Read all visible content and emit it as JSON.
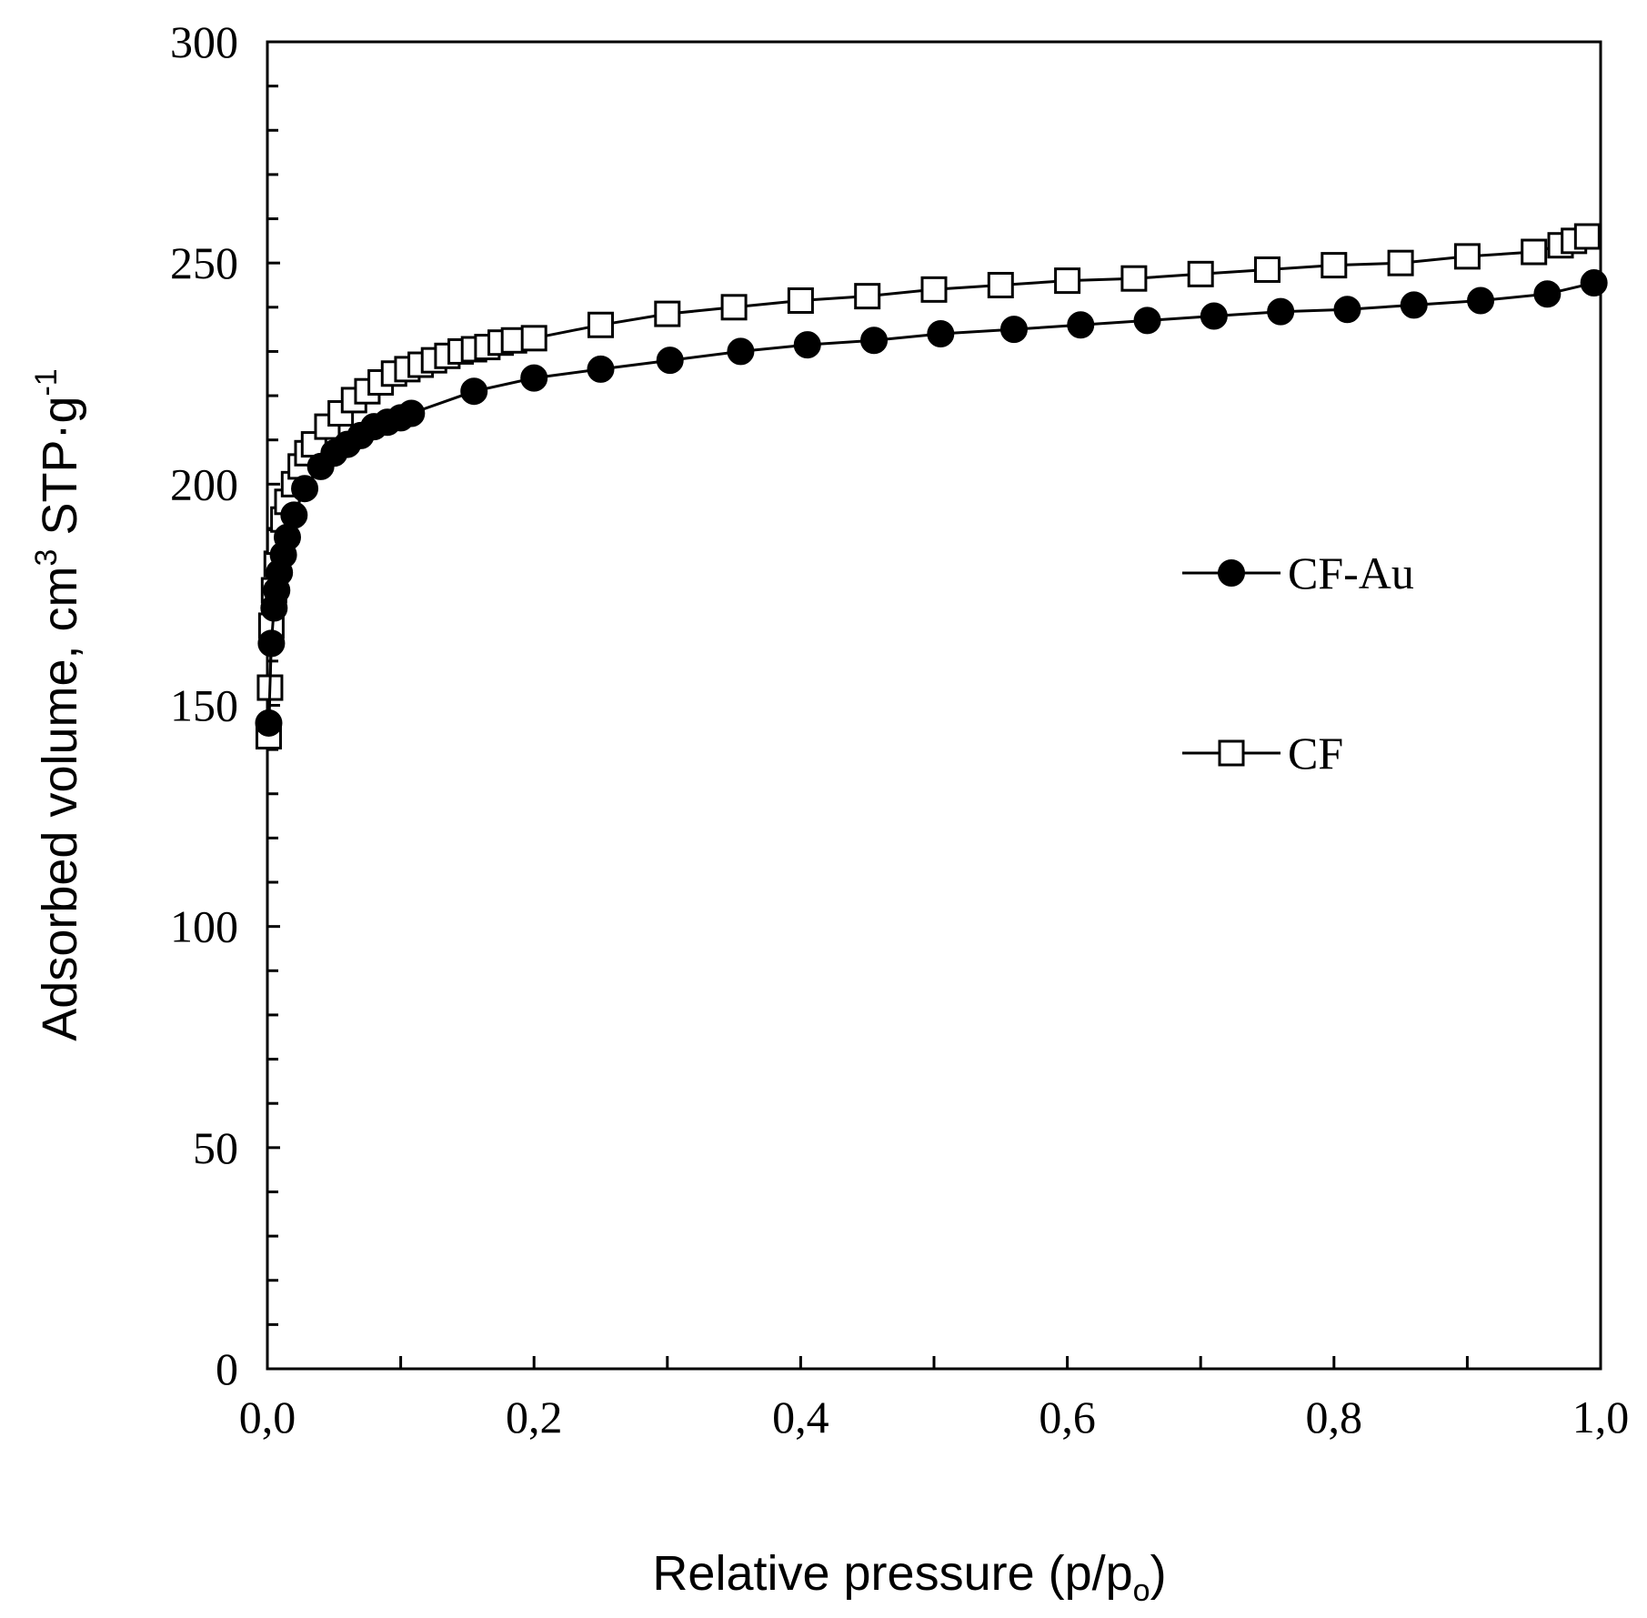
{
  "chart_data": {
    "type": "line",
    "title": "",
    "xlabel_main": "Relative pressure (p/p",
    "xlabel_sub": "o",
    "xlabel_end": ")",
    "ylabel_main": "Adsorbed volume, cm",
    "ylabel_sup1": "3",
    "ylabel_mid": " STP·g",
    "ylabel_sup2": "-1",
    "xlim": [
      0,
      1
    ],
    "ylim": [
      0,
      300
    ],
    "x_ticks": [
      0,
      0.2,
      0.4,
      0.6,
      0.8,
      1.0
    ],
    "x_tick_labels": [
      "0,0",
      "0,2",
      "0,4",
      "0,6",
      "0,8",
      "1,0"
    ],
    "y_ticks": [
      0,
      50,
      100,
      150,
      200,
      250,
      300
    ],
    "y_tick_labels": [
      "0",
      "50",
      "100",
      "150",
      "200",
      "250",
      "300"
    ],
    "y_minor_step": 10,
    "x_minor_step": 0.1,
    "grid": false,
    "legend_position": "right-middle",
    "series": [
      {
        "name": "CF-Au",
        "marker": "filled-circle",
        "x": [
          0.001,
          0.003,
          0.005,
          0.007,
          0.009,
          0.012,
          0.015,
          0.02,
          0.028,
          0.04,
          0.05,
          0.06,
          0.07,
          0.08,
          0.09,
          0.1,
          0.108,
          0.155,
          0.2,
          0.25,
          0.302,
          0.355,
          0.405,
          0.455,
          0.505,
          0.56,
          0.61,
          0.66,
          0.71,
          0.76,
          0.81,
          0.86,
          0.91,
          0.96,
          0.995
        ],
        "values": [
          146,
          164,
          172,
          176,
          180,
          184,
          188,
          193,
          199,
          204,
          207,
          209,
          211,
          213,
          214,
          215,
          216,
          221,
          224,
          226,
          228,
          230,
          231.5,
          232.5,
          234,
          235,
          236,
          237,
          238,
          239,
          239.5,
          240.5,
          241.5,
          243,
          245.5
        ]
      },
      {
        "name": "CF",
        "marker": "open-square",
        "x": [
          0.001,
          0.002,
          0.003,
          0.005,
          0.007,
          0.009,
          0.012,
          0.015,
          0.02,
          0.025,
          0.03,
          0.035,
          0.045,
          0.055,
          0.065,
          0.075,
          0.085,
          0.095,
          0.105,
          0.115,
          0.125,
          0.135,
          0.145,
          0.155,
          0.165,
          0.175,
          0.185,
          0.2,
          0.25,
          0.3,
          0.35,
          0.4,
          0.45,
          0.5,
          0.55,
          0.6,
          0.65,
          0.7,
          0.75,
          0.8,
          0.85,
          0.9,
          0.95,
          0.97,
          0.98,
          0.99
        ],
        "values": [
          143,
          154,
          168,
          176,
          182,
          187,
          192,
          196,
          200,
          204,
          207,
          209,
          213,
          216,
          219,
          221,
          223,
          225,
          226,
          227,
          228,
          229,
          230,
          230.5,
          231,
          232,
          232.5,
          233,
          236,
          238.5,
          240,
          241.5,
          242.5,
          244,
          245,
          246,
          246.5,
          247.5,
          248.5,
          249.5,
          250,
          251.5,
          252.5,
          254,
          255,
          256
        ]
      }
    ]
  }
}
